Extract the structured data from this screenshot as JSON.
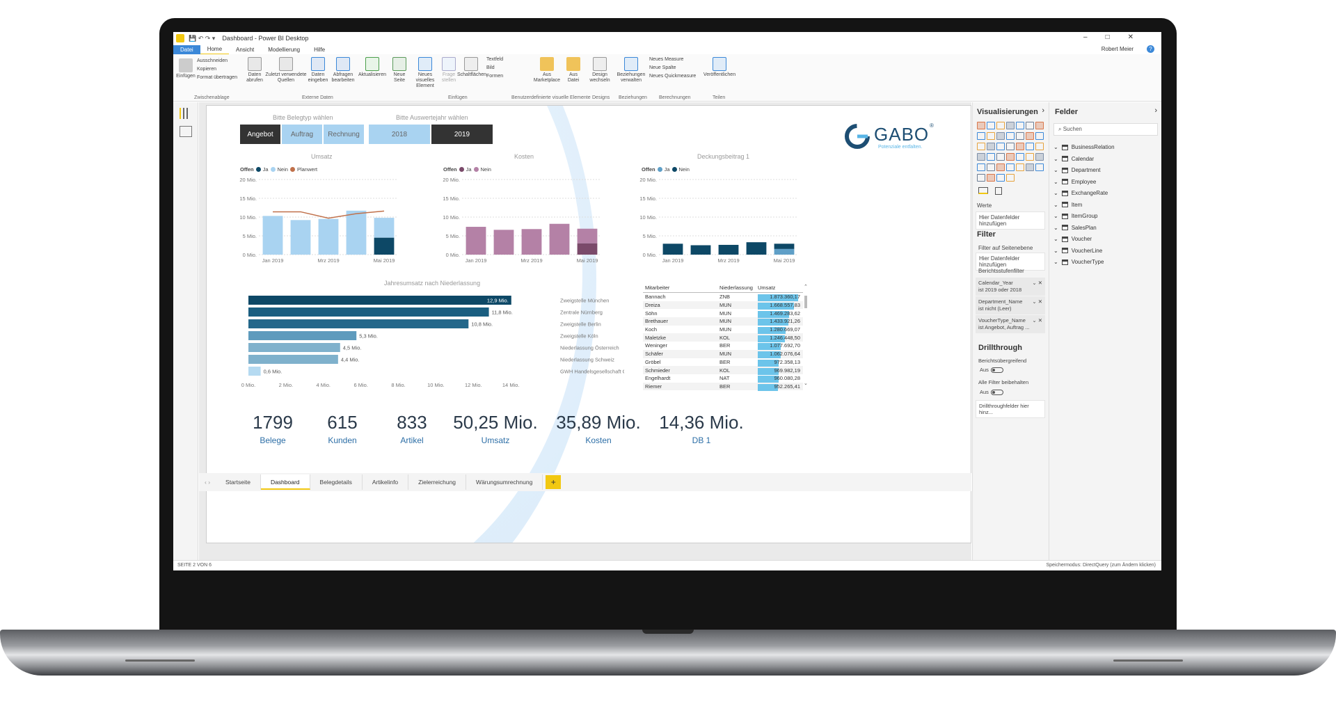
{
  "app": {
    "title": "Dashboard - Power BI Desktop",
    "user": "Robert Meier",
    "help": "?"
  },
  "menu": {
    "tabs": [
      "Datei",
      "Home",
      "Ansicht",
      "Modellierung",
      "Hilfe"
    ]
  },
  "ribbon": {
    "clipboard": {
      "paste": "Einfügen",
      "cut": "Ausschneiden",
      "copy": "Kopieren",
      "format": "Format übertragen",
      "group": "Zwischenablage"
    },
    "external": {
      "get_data": "Daten abrufen",
      "recent": "Zuletzt verwendete Quellen",
      "enter": "Daten eingeben",
      "edit": "Abfragen bearbeiten",
      "refresh": "Aktualisieren",
      "group": "Externe Daten"
    },
    "insert": {
      "new_page": "Neue Seite",
      "new_visual": "Neues visuelles Element",
      "ask": "Frage stellen",
      "buttons": "Schaltflächen",
      "textbox": "Textfeld",
      "image": "Bild",
      "shapes": "Formen",
      "group": "Einfügen"
    },
    "custom": {
      "marketplace": "Aus Marketplace",
      "file": "Aus Datei",
      "group": "Benutzerdefinierte visuelle Elemente"
    },
    "designs": {
      "switch": "Design wechseln",
      "group": "Designs"
    },
    "relations": {
      "manage": "Beziehungen verwalten",
      "group": "Beziehungen"
    },
    "calc": {
      "measure": "Neues Measure",
      "column": "Neue Spalte",
      "quick": "Neues Quickmeasure",
      "group": "Berechnungen"
    },
    "share": {
      "publish": "Veröffentlichen",
      "group": "Teilen"
    }
  },
  "slicers": {
    "type_label": "Bitte Belegtyp wählen",
    "type_options": [
      "Angebot",
      "Auftrag",
      "Rechnung"
    ],
    "year_label": "Bitte Auswertejahr wählen",
    "year_options": [
      "2018",
      "2019"
    ]
  },
  "logo": {
    "name": "GABO",
    "tagline": "Potenziale entfalten.",
    "registered": "®"
  },
  "colors": {
    "umsatz": "#a9d3f1",
    "umsatz_dark": "#0d4866",
    "kosten": "#b481a6",
    "kosten_dark": "#7a4a6a",
    "db": "#0d4866",
    "planwert": "#c0704a",
    "accent": "#f2c811"
  },
  "chart_data": [
    {
      "type": "bar",
      "title": "Umsatz",
      "legend_title": "Offen",
      "legend": [
        "Ja",
        "Nein",
        "Planwert"
      ],
      "categories": [
        "Jan 2019",
        "Feb 2019",
        "Mrz 2019",
        "Apr 2019",
        "Mai 2019"
      ],
      "x_tick_labels": [
        "Jan 2019",
        "Mrz 2019",
        "Mai 2019"
      ],
      "y_ticks": [
        "20 Mio.",
        "15 Mio.",
        "10 Mio.",
        "5 Mio.",
        "0 Mio."
      ],
      "ylim": [
        0,
        20
      ],
      "series": [
        {
          "name": "Ja",
          "values": [
            0,
            0,
            0,
            0,
            4.5
          ]
        },
        {
          "name": "Nein",
          "values": [
            10.3,
            9.2,
            9.5,
            11.7,
            5.3
          ]
        },
        {
          "name": "Planwert",
          "values": [
            11.4,
            11.4,
            9.7,
            10.9,
            11.6
          ]
        }
      ]
    },
    {
      "type": "bar",
      "title": "Kosten",
      "legend_title": "Offen",
      "legend": [
        "Ja",
        "Nein"
      ],
      "categories": [
        "Jan 2019",
        "Feb 2019",
        "Mrz 2019",
        "Apr 2019",
        "Mai 2019"
      ],
      "x_tick_labels": [
        "Jan 2019",
        "Mrz 2019",
        "Mai 2019"
      ],
      "y_ticks": [
        "20 Mio.",
        "15 Mio.",
        "10 Mio.",
        "5 Mio.",
        "0 Mio."
      ],
      "ylim": [
        0,
        20
      ],
      "series": [
        {
          "name": "Ja",
          "values": [
            0,
            0,
            0,
            0,
            3.0
          ]
        },
        {
          "name": "Nein",
          "values": [
            7.4,
            6.6,
            6.8,
            8.2,
            3.9
          ]
        }
      ]
    },
    {
      "type": "bar",
      "title": "Deckungsbeitrag 1",
      "legend_title": "Offen",
      "legend": [
        "Ja",
        "Nein"
      ],
      "categories": [
        "Jan 2019",
        "Feb 2019",
        "Mrz 2019",
        "Apr 2019",
        "Mai 2019"
      ],
      "x_tick_labels": [
        "Jan 2019",
        "Mrz 2019",
        "Mai 2019"
      ],
      "y_ticks": [
        "20 Mio.",
        "15 Mio.",
        "10 Mio.",
        "5 Mio.",
        "0 Mio."
      ],
      "ylim": [
        0,
        20
      ],
      "series": [
        {
          "name": "Ja",
          "values": [
            0,
            0,
            0,
            0,
            1.5
          ]
        },
        {
          "name": "Nein",
          "values": [
            2.9,
            2.5,
            2.6,
            3.3,
            1.4
          ]
        }
      ]
    },
    {
      "type": "bar",
      "title": "Jahresumsatz nach Niederlassung",
      "categories": [
        "Zweigstelle München",
        "Zentrale Nürnberg",
        "Zweigstelle Berlin",
        "Zweigstelle Köln",
        "Niederlassung Österreich",
        "Niederlassung Schweiz",
        "GWH Handelsgesellschaft GmbH"
      ],
      "values": [
        12.9,
        11.8,
        10.8,
        5.3,
        4.5,
        4.4,
        0.6
      ],
      "value_labels": [
        "12,9 Mio.",
        "11,8 Mio.",
        "10,8 Mio.",
        "5,3 Mio.",
        "4,5 Mio.",
        "4,4 Mio.",
        "0,6 Mio."
      ],
      "x_ticks": [
        "0 Mio.",
        "2 Mio.",
        "4 Mio.",
        "6 Mio.",
        "8 Mio.",
        "10 Mio.",
        "12 Mio.",
        "14 Mio."
      ],
      "xlim": [
        0,
        14
      ]
    }
  ],
  "table": {
    "headers": [
      "Mitarbeiter",
      "Niederlassung",
      "Umsatz"
    ],
    "rows": [
      [
        "Bannach",
        "ZNB",
        "1.873.360,17"
      ],
      [
        "Dreiza",
        "MUN",
        "1.668.557,83"
      ],
      [
        "Söhn",
        "MUN",
        "1.469.283,62"
      ],
      [
        "Brethauer",
        "MUN",
        "1.433.921,26"
      ],
      [
        "Koch",
        "MUN",
        "1.280.669,07"
      ],
      [
        "Maletzke",
        "KOL",
        "1.246.448,50"
      ],
      [
        "Weninger",
        "BER",
        "1.077.692,70"
      ],
      [
        "Schäfer",
        "MUN",
        "1.062.076,64"
      ],
      [
        "Gröbel",
        "BER",
        "972.358,13"
      ],
      [
        "Schmieder",
        "KOL",
        "969.982,19"
      ],
      [
        "Engelhardt",
        "NAT",
        "960.080,28"
      ],
      [
        "Riemer",
        "BER",
        "952.265,41"
      ]
    ],
    "umsatz_values": [
      1873360.17,
      1668557.83,
      1469283.62,
      1433921.26,
      1280669.07,
      1246448.5,
      1077692.7,
      1062076.64,
      972358.13,
      969982.19,
      960080.28,
      952265.41
    ]
  },
  "kpis": [
    {
      "value": "1799",
      "label": "Belege"
    },
    {
      "value": "615",
      "label": "Kunden"
    },
    {
      "value": "833",
      "label": "Artikel"
    },
    {
      "value": "50,25 Mio.",
      "label": "Umsatz"
    },
    {
      "value": "35,89 Mio.",
      "label": "Kosten"
    },
    {
      "value": "14,36 Mio.",
      "label": "DB 1"
    }
  ],
  "pages": {
    "tabs": [
      "Startseite",
      "Dashboard",
      "Belegdetails",
      "Artikelinfo",
      "Zielerreichung",
      "Wärungsumrechnung"
    ],
    "active": "Dashboard",
    "add": "+"
  },
  "status": {
    "page": "SEITE 2 VON 6",
    "mode": "Speichermodus: DirectQuery (zum Ändern klicken)"
  },
  "viz_pane": {
    "title": "Visualisierungen",
    "values_label": "Werte",
    "values_drop": "Hier Datenfelder hinzufügen",
    "filter_title": "Filter",
    "page_filter": "Filter auf Seitenebene",
    "page_drop": "Hier Datenfelder hinzufügen",
    "report_filter": "Berichtsstufenfilter",
    "filters": [
      {
        "name": "Calendar_Year",
        "desc": "ist 2019 oder 2018"
      },
      {
        "name": "Department_Name",
        "desc": "ist nicht (Leer)"
      },
      {
        "name": "VoucherType_Name",
        "desc": "ist Angebot, Auftrag ..."
      }
    ],
    "drill_title": "Drillthrough",
    "cross_report": "Berichtsübergreifend",
    "off1": "Aus",
    "keep_filters": "Alle Filter beibehalten",
    "off2": "Aus",
    "drill_drop": "Drillthroughfelder hier hinz..."
  },
  "fields_pane": {
    "title": "Felder",
    "search": "Suchen",
    "tables": [
      "BusinessRelation",
      "Calendar",
      "Department",
      "Employee",
      "ExchangeRate",
      "Item",
      "ItemGroup",
      "SalesPlan",
      "Voucher",
      "VoucherLine",
      "VoucherType"
    ]
  }
}
